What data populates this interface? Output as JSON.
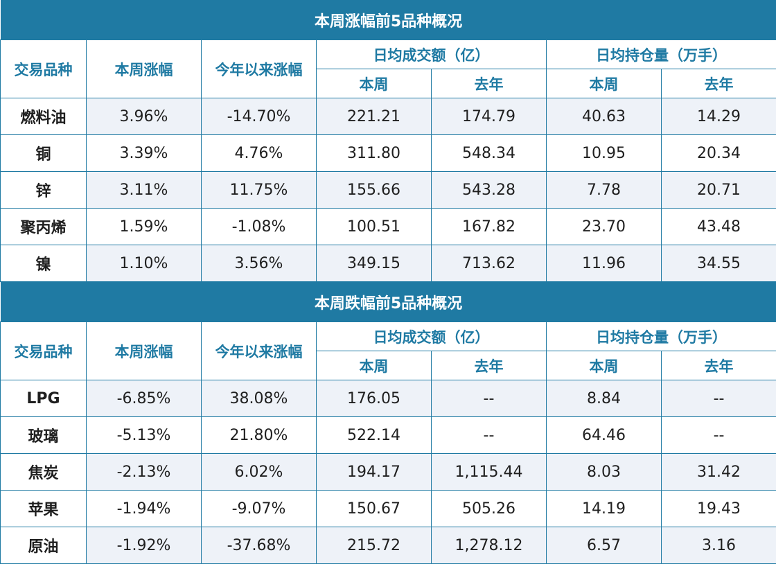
{
  "tables": [
    {
      "title": "本周涨幅前5品种概况",
      "headers": {
        "product": "交易品种",
        "week_change": "本周涨幅",
        "ytd_change": "今年以来涨幅",
        "avg_volume": "日均成交额（亿）",
        "avg_open_interest": "日均持仓量（万手）",
        "this_week": "本周",
        "last_year": "去年"
      },
      "rows": [
        [
          "燃料油",
          "3.96%",
          "-14.70%",
          "221.21",
          "174.79",
          "40.63",
          "14.29"
        ],
        [
          "铜",
          "3.39%",
          "4.76%",
          "311.80",
          "548.34",
          "10.95",
          "20.34"
        ],
        [
          "锌",
          "3.11%",
          "11.75%",
          "155.66",
          "543.28",
          "7.78",
          "20.71"
        ],
        [
          "聚丙烯",
          "1.59%",
          "-1.08%",
          "100.51",
          "167.82",
          "23.70",
          "43.48"
        ],
        [
          "镍",
          "1.10%",
          "3.56%",
          "349.15",
          "713.62",
          "11.96",
          "34.55"
        ]
      ]
    },
    {
      "title": "本周跌幅前5品种概况",
      "headers": {
        "product": "交易品种",
        "week_change": "本周涨幅",
        "ytd_change": "今年以来涨幅",
        "avg_volume": "日均成交额（亿）",
        "avg_open_interest": "日均持仓量（万手）",
        "this_week": "本周",
        "last_year": "去年"
      },
      "rows": [
        [
          "LPG",
          "-6.85%",
          "38.08%",
          "176.05",
          "--",
          "8.84",
          "--"
        ],
        [
          "玻璃",
          "-5.13%",
          "21.80%",
          "522.14",
          "--",
          "64.46",
          "--"
        ],
        [
          "焦炭",
          "-2.13%",
          "6.02%",
          "194.17",
          "1,115.44",
          "8.03",
          "31.42"
        ],
        [
          "苹果",
          "-1.94%",
          "-9.07%",
          "150.67",
          "505.26",
          "14.19",
          "19.43"
        ],
        [
          "原油",
          "-1.92%",
          "-37.68%",
          "215.72",
          "1,278.12",
          "6.57",
          "3.16"
        ]
      ]
    }
  ],
  "colors": {
    "accent": "#1f7aa3",
    "shade": "#eef2f8",
    "text": "#1f1f1f"
  }
}
